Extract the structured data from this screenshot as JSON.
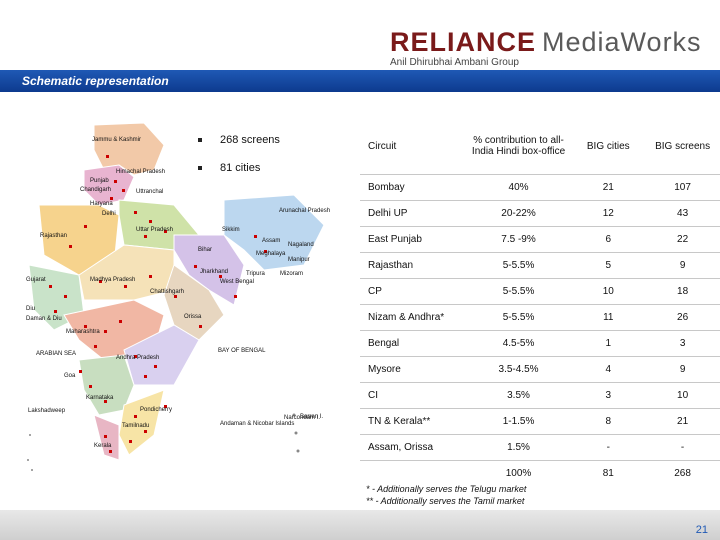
{
  "header": {
    "brand_main": "RELIANCE",
    "brand_secondary": "MediaWorks",
    "brand_sub": "Anil Dhirubhai Ambani Group",
    "title": "Schematic representation"
  },
  "bullets": [
    {
      "text": "268 screens"
    },
    {
      "text": "81 cities"
    }
  ],
  "map_labels": [
    {
      "text": "Jammu & Kashmir"
    },
    {
      "text": "Himachal Pradesh"
    },
    {
      "text": "Punjab"
    },
    {
      "text": "Chandigarh"
    },
    {
      "text": "Uttranchal"
    },
    {
      "text": "Haryana"
    },
    {
      "text": "Delhi"
    },
    {
      "text": "Uttar Pradesh"
    },
    {
      "text": "Rajasthan"
    },
    {
      "text": "Sikkim"
    },
    {
      "text": "Arunachal Pradesh"
    },
    {
      "text": "Assam"
    },
    {
      "text": "Nagaland"
    },
    {
      "text": "Meghalaya"
    },
    {
      "text": "Manipur"
    },
    {
      "text": "Bihar"
    },
    {
      "text": "Tripura"
    },
    {
      "text": "Mizoram"
    },
    {
      "text": "Jharkhand"
    },
    {
      "text": "West Bengal"
    },
    {
      "text": "Gujarat"
    },
    {
      "text": "Madhya Pradesh"
    },
    {
      "text": "Chattishgarh"
    },
    {
      "text": "Orissa"
    },
    {
      "text": "Diu"
    },
    {
      "text": "Daman & Diu"
    },
    {
      "text": "Maharashtra"
    },
    {
      "text": "ARABIAN SEA"
    },
    {
      "text": "Andhra Pradesh"
    },
    {
      "text": "BAY OF BENGAL"
    },
    {
      "text": "Goa"
    },
    {
      "text": "Karnataka"
    },
    {
      "text": "Narcondam I."
    },
    {
      "text": "Lakshadweep"
    },
    {
      "text": "Pondicherry"
    },
    {
      "text": "Barren I."
    },
    {
      "text": "Andaman & Nicobar Islands"
    },
    {
      "text": "Tamilnadu"
    },
    {
      "text": "Kerala"
    }
  ],
  "table": {
    "headers": [
      "Circuit",
      "% contribution to all-India Hindi box-office",
      "BIG cities",
      "BIG screens"
    ],
    "rows": [
      [
        "Bombay",
        "40%",
        "21",
        "107"
      ],
      [
        "Delhi UP",
        "20-22%",
        "12",
        "43"
      ],
      [
        "East Punjab",
        "7.5 -9%",
        "6",
        "22"
      ],
      [
        "Rajasthan",
        "5-5.5%",
        "5",
        "9"
      ],
      [
        "CP",
        "5-5.5%",
        "10",
        "18"
      ],
      [
        "Nizam & Andhra*",
        "5-5.5%",
        "11",
        "26"
      ],
      [
        "Bengal",
        "4.5-5%",
        "1",
        "3"
      ],
      [
        "Mysore",
        "3.5-4.5%",
        "4",
        "9"
      ],
      [
        "CI",
        "3.5%",
        "3",
        "10"
      ],
      [
        "TN & Kerala**",
        "1-1.5%",
        "8",
        "21"
      ],
      [
        "Assam, Orissa",
        "1.5%",
        "-",
        "-"
      ],
      [
        "",
        "100%",
        "81",
        "268"
      ]
    ]
  },
  "footnotes": [
    "* - Additionally serves the Telugu market",
    "** - Additionally serves the Tamil market"
  ],
  "page_number": "21",
  "colors": {
    "title_bar": "#1f59b5",
    "brand_red": "#7a1a1a",
    "marker": "#cc0000"
  }
}
